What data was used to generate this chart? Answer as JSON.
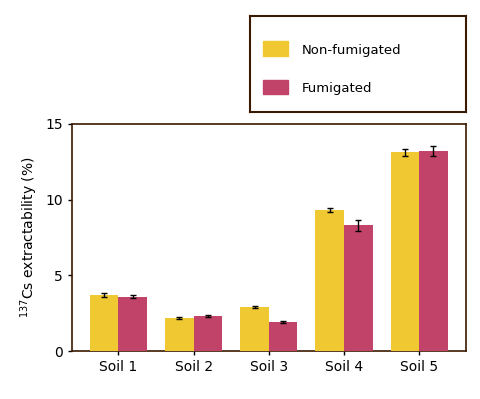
{
  "categories": [
    "Soil 1",
    "Soil 2",
    "Soil 3",
    "Soil 4",
    "Soil 5"
  ],
  "non_fumigated_values": [
    3.7,
    2.2,
    2.9,
    9.3,
    13.1
  ],
  "fumigated_values": [
    3.6,
    2.3,
    1.9,
    8.3,
    13.2
  ],
  "non_fumigated_errors": [
    0.15,
    0.07,
    0.08,
    0.15,
    0.25
  ],
  "fumigated_errors": [
    0.12,
    0.07,
    0.06,
    0.35,
    0.35
  ],
  "non_fumigated_color": "#F0C832",
  "fumigated_color": "#C2436A",
  "bar_width": 0.38,
  "ylim": [
    0,
    15
  ],
  "yticks": [
    0,
    5,
    10,
    15
  ],
  "ylabel": "$^{137}$Cs extractability (%)",
  "legend_labels": [
    "Non-fumigated",
    "Fumigated"
  ],
  "background_color": "#ffffff",
  "spine_color": "#3a1a00",
  "legend_edge_color": "#3a1a00"
}
